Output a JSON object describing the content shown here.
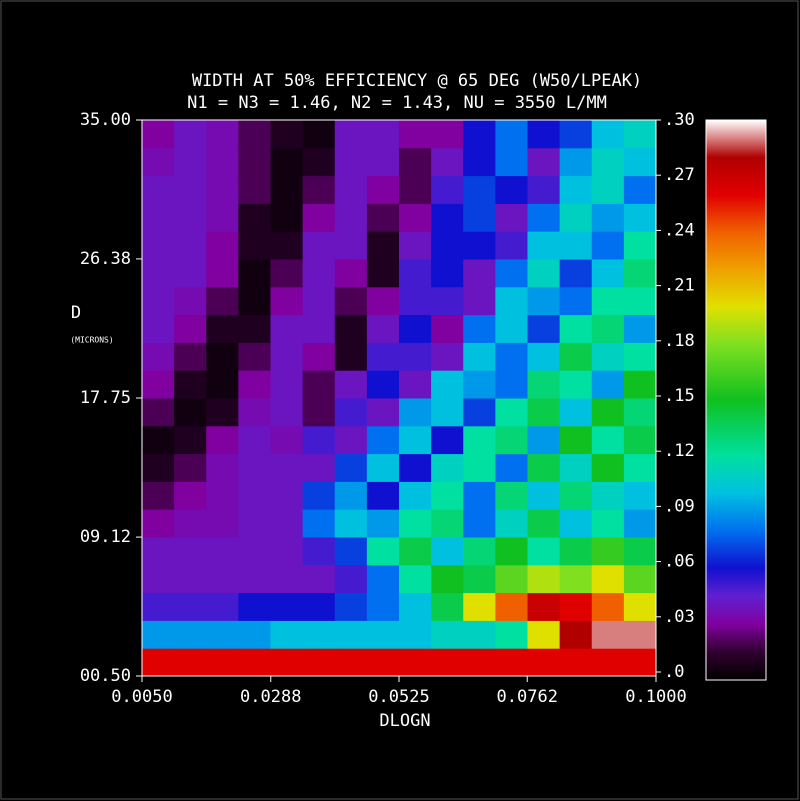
{
  "chart_data": {
    "type": "heatmap",
    "title": "WIDTH AT 50% EFFICIENCY @ 65 DEG (W50/LPEAK)",
    "subtitle": "N1 = N3 = 1.46, N2 = 1.43, NU = 3550 L/MM",
    "x_label": "DLOGN",
    "y_label": "D",
    "y_label_unit": "(MICRONS)",
    "xlim": [
      0.005,
      0.1
    ],
    "xticks": [
      {
        "value": 0.005,
        "label": "0.0050"
      },
      {
        "value": 0.0288,
        "label": "0.0288"
      },
      {
        "value": 0.0525,
        "label": "0.0525"
      },
      {
        "value": 0.0762,
        "label": "0.0762"
      },
      {
        "value": 0.1,
        "label": "0.1000"
      }
    ],
    "ylim": [
      0.5,
      35
    ],
    "yticks": [
      {
        "value": 0.5,
        "label": "00.50"
      },
      {
        "value": 9.12,
        "label": "09.12"
      },
      {
        "value": 17.75,
        "label": "17.75"
      },
      {
        "value": 26.38,
        "label": "26.38"
      },
      {
        "value": 35,
        "label": "35.00"
      }
    ],
    "zlim": [
      0,
      0.3
    ],
    "zticks": [
      {
        "value": 0,
        "label": ".0"
      },
      {
        "value": 0.03,
        "label": ".03"
      },
      {
        "value": 0.06,
        "label": ".06"
      },
      {
        "value": 0.09,
        "label": ".09"
      },
      {
        "value": 0.12,
        "label": ".12"
      },
      {
        "value": 0.15,
        "label": ".15"
      },
      {
        "value": 0.18,
        "label": ".18"
      },
      {
        "value": 0.21,
        "label": ".21"
      },
      {
        "value": 0.24,
        "label": ".24"
      },
      {
        "value": 0.27,
        "label": ".27"
      },
      {
        "value": 0.3,
        "label": ".30"
      }
    ],
    "colorscale": [
      [
        0,
        "#000000"
      ],
      [
        0.015,
        "#300030"
      ],
      [
        0.03,
        "#8000a0"
      ],
      [
        0.045,
        "#6020d0"
      ],
      [
        0.06,
        "#1010d0"
      ],
      [
        0.08,
        "#0070f0"
      ],
      [
        0.1,
        "#00c0e0"
      ],
      [
        0.12,
        "#00e0a0"
      ],
      [
        0.15,
        "#10c020"
      ],
      [
        0.18,
        "#80e020"
      ],
      [
        0.2,
        "#e0e000"
      ],
      [
        0.22,
        "#f0a000"
      ],
      [
        0.24,
        "#f06000"
      ],
      [
        0.26,
        "#e00000"
      ],
      [
        0.28,
        "#b00000"
      ],
      [
        0.3,
        "#ffffff"
      ]
    ],
    "z": [
      [
        0.26,
        0.26,
        0.26,
        0.26,
        0.26,
        0.26,
        0.26,
        0.26,
        0.26,
        0.26,
        0.26,
        0.26,
        0.26,
        0.26,
        0.26,
        0.26
      ],
      [
        0.09,
        0.09,
        0.09,
        0.09,
        0.1,
        0.1,
        0.1,
        0.1,
        0.1,
        0.11,
        0.11,
        0.12,
        0.2,
        0.28,
        0.29,
        0.29
      ],
      [
        0.05,
        0.05,
        0.05,
        0.06,
        0.06,
        0.06,
        0.07,
        0.08,
        0.1,
        0.14,
        0.2,
        0.24,
        0.27,
        0.26,
        0.24,
        0.2
      ],
      [
        0.04,
        0.04,
        0.04,
        0.04,
        0.04,
        0.04,
        0.05,
        0.08,
        0.12,
        0.15,
        0.14,
        0.17,
        0.19,
        0.18,
        0.2,
        0.17
      ],
      [
        0.04,
        0.04,
        0.04,
        0.04,
        0.04,
        0.05,
        0.07,
        0.12,
        0.14,
        0.1,
        0.13,
        0.15,
        0.12,
        0.14,
        0.16,
        0.14
      ],
      [
        0.03,
        0.035,
        0.035,
        0.04,
        0.04,
        0.08,
        0.1,
        0.09,
        0.12,
        0.13,
        0.08,
        0.11,
        0.14,
        0.1,
        0.12,
        0.09
      ],
      [
        0.02,
        0.03,
        0.035,
        0.04,
        0.04,
        0.07,
        0.09,
        0.06,
        0.1,
        0.12,
        0.08,
        0.13,
        0.1,
        0.13,
        0.11,
        0.1
      ],
      [
        0.01,
        0.02,
        0.035,
        0.04,
        0.04,
        0.04,
        0.07,
        0.1,
        0.06,
        0.11,
        0.12,
        0.08,
        0.14,
        0.11,
        0.15,
        0.12
      ],
      [
        0.005,
        0.01,
        0.03,
        0.04,
        0.035,
        0.05,
        0.04,
        0.08,
        0.1,
        0.06,
        0.12,
        0.13,
        0.09,
        0.15,
        0.12,
        0.14
      ],
      [
        0.02,
        0.005,
        0.01,
        0.035,
        0.04,
        0.02,
        0.05,
        0.04,
        0.09,
        0.1,
        0.07,
        0.12,
        0.14,
        0.1,
        0.15,
        0.13
      ],
      [
        0.03,
        0.01,
        0.005,
        0.03,
        0.04,
        0.02,
        0.04,
        0.06,
        0.04,
        0.1,
        0.09,
        0.08,
        0.13,
        0.12,
        0.09,
        0.15
      ],
      [
        0.035,
        0.02,
        0.005,
        0.02,
        0.04,
        0.03,
        0.01,
        0.05,
        0.05,
        0.04,
        0.1,
        0.08,
        0.1,
        0.14,
        0.11,
        0.12
      ],
      [
        0.04,
        0.03,
        0.01,
        0.01,
        0.04,
        0.04,
        0.01,
        0.04,
        0.06,
        0.03,
        0.08,
        0.1,
        0.07,
        0.12,
        0.13,
        0.09
      ],
      [
        0.04,
        0.035,
        0.02,
        0.005,
        0.03,
        0.04,
        0.02,
        0.03,
        0.05,
        0.05,
        0.04,
        0.1,
        0.09,
        0.08,
        0.12,
        0.12
      ],
      [
        0.04,
        0.04,
        0.03,
        0.005,
        0.02,
        0.04,
        0.03,
        0.01,
        0.05,
        0.06,
        0.04,
        0.08,
        0.11,
        0.07,
        0.1,
        0.13
      ],
      [
        0.04,
        0.04,
        0.03,
        0.01,
        0.01,
        0.04,
        0.04,
        0.01,
        0.04,
        0.06,
        0.06,
        0.05,
        0.1,
        0.1,
        0.08,
        0.12
      ],
      [
        0.04,
        0.04,
        0.035,
        0.01,
        0.005,
        0.03,
        0.04,
        0.02,
        0.03,
        0.06,
        0.07,
        0.04,
        0.08,
        0.11,
        0.09,
        0.1
      ],
      [
        0.04,
        0.04,
        0.035,
        0.02,
        0.005,
        0.02,
        0.04,
        0.03,
        0.02,
        0.05,
        0.07,
        0.06,
        0.05,
        0.1,
        0.11,
        0.08
      ],
      [
        0.035,
        0.04,
        0.035,
        0.02,
        0.005,
        0.01,
        0.04,
        0.04,
        0.02,
        0.04,
        0.06,
        0.08,
        0.04,
        0.09,
        0.11,
        0.1
      ],
      [
        0.03,
        0.04,
        0.035,
        0.02,
        0.01,
        0.005,
        0.04,
        0.04,
        0.03,
        0.03,
        0.06,
        0.08,
        0.06,
        0.07,
        0.1,
        0.11
      ]
    ]
  }
}
